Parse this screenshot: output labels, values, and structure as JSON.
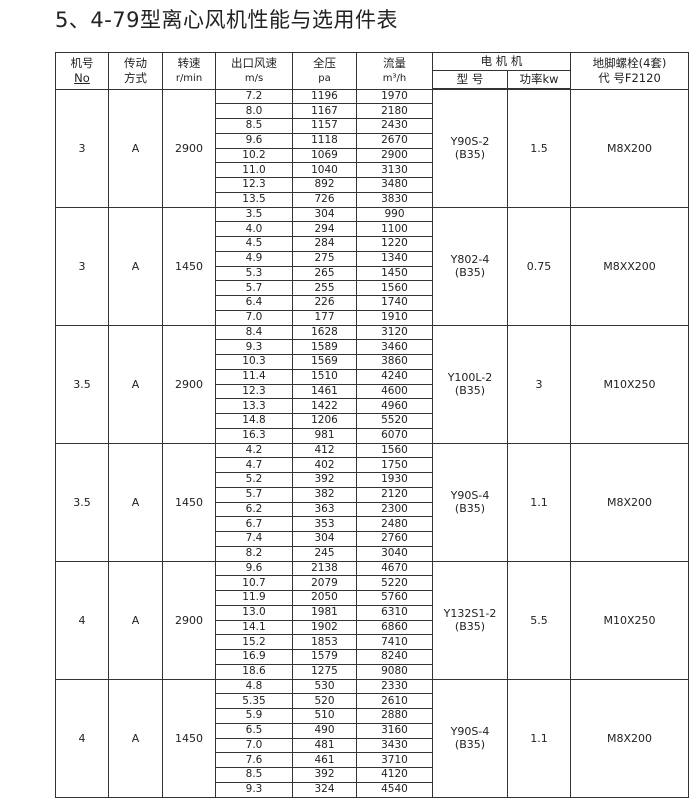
{
  "title": "5、4-79型离心风机性能与选用件表",
  "header": {
    "no": [
      "机号",
      "No"
    ],
    "drive": [
      "传动",
      "方式"
    ],
    "speed": [
      "转速",
      "r/min"
    ],
    "velocity": [
      "出口风速",
      "m/s"
    ],
    "pressure": [
      "全压",
      "pa"
    ],
    "flow": [
      "流量",
      "m³/h"
    ],
    "motor": "电 机 机",
    "motor_model": "型 号",
    "motor_power": "功率kw",
    "bolt": [
      "地脚螺栓(4套)",
      "代 号F2120"
    ]
  },
  "groups": [
    {
      "no": "3",
      "drive": "A",
      "speed": "2900",
      "model": "Y90S-2",
      "frame": "(B35)",
      "power": "1.5",
      "bolt": "M8X200",
      "rows": [
        [
          "7.2",
          "1196",
          "1970"
        ],
        [
          "8.0",
          "1167",
          "2180"
        ],
        [
          "8.5",
          "1157",
          "2430"
        ],
        [
          "9.6",
          "1118",
          "2670"
        ],
        [
          "10.2",
          "1069",
          "2900"
        ],
        [
          "11.0",
          "1040",
          "3130"
        ],
        [
          "12.3",
          "892",
          "3480"
        ],
        [
          "13.5",
          "726",
          "3830"
        ]
      ]
    },
    {
      "no": "3",
      "drive": "A",
      "speed": "1450",
      "model": "Y802-4",
      "frame": "(B35)",
      "power": "0.75",
      "bolt": "M8XX200",
      "rows": [
        [
          "3.5",
          "304",
          "990"
        ],
        [
          "4.0",
          "294",
          "1100"
        ],
        [
          "4.5",
          "284",
          "1220"
        ],
        [
          "4.9",
          "275",
          "1340"
        ],
        [
          "5.3",
          "265",
          "1450"
        ],
        [
          "5.7",
          "255",
          "1560"
        ],
        [
          "6.4",
          "226",
          "1740"
        ],
        [
          "7.0",
          "177",
          "1910"
        ]
      ]
    },
    {
      "no": "3.5",
      "drive": "A",
      "speed": "2900",
      "model": "Y100L-2",
      "frame": "(B35)",
      "power": "3",
      "bolt": "M10X250",
      "rows": [
        [
          "8.4",
          "1628",
          "3120"
        ],
        [
          "9.3",
          "1589",
          "3460"
        ],
        [
          "10.3",
          "1569",
          "3860"
        ],
        [
          "11.4",
          "1510",
          "4240"
        ],
        [
          "12.3",
          "1461",
          "4600"
        ],
        [
          "13.3",
          "1422",
          "4960"
        ],
        [
          "14.8",
          "1206",
          "5520"
        ],
        [
          "16.3",
          "981",
          "6070"
        ]
      ]
    },
    {
      "no": "3.5",
      "drive": "A",
      "speed": "1450",
      "model": "Y90S-4",
      "frame": "(B35)",
      "power": "1.1",
      "bolt": "M8X200",
      "rows": [
        [
          "4.2",
          "412",
          "1560"
        ],
        [
          "4.7",
          "402",
          "1750"
        ],
        [
          "5.2",
          "392",
          "1930"
        ],
        [
          "5.7",
          "382",
          "2120"
        ],
        [
          "6.2",
          "363",
          "2300"
        ],
        [
          "6.7",
          "353",
          "2480"
        ],
        [
          "7.4",
          "304",
          "2760"
        ],
        [
          "8.2",
          "245",
          "3040"
        ]
      ]
    },
    {
      "no": "4",
      "drive": "A",
      "speed": "2900",
      "model": "Y132S1-2",
      "frame": "(B35)",
      "power": "5.5",
      "bolt": "M10X250",
      "rows": [
        [
          "9.6",
          "2138",
          "4670"
        ],
        [
          "10.7",
          "2079",
          "5220"
        ],
        [
          "11.9",
          "2050",
          "5760"
        ],
        [
          "13.0",
          "1981",
          "6310"
        ],
        [
          "14.1",
          "1902",
          "6860"
        ],
        [
          "15.2",
          "1853",
          "7410"
        ],
        [
          "16.9",
          "1579",
          "8240"
        ],
        [
          "18.6",
          "1275",
          "9080"
        ]
      ]
    },
    {
      "no": "4",
      "drive": "A",
      "speed": "1450",
      "model": "Y90S-4",
      "frame": "(B35)",
      "power": "1.1",
      "bolt": "M8X200",
      "rows": [
        [
          "4.8",
          "530",
          "2330"
        ],
        [
          "5.35",
          "520",
          "2610"
        ],
        [
          "5.9",
          "510",
          "2880"
        ],
        [
          "6.5",
          "490",
          "3160"
        ],
        [
          "7.0",
          "481",
          "3430"
        ],
        [
          "7.6",
          "461",
          "3710"
        ],
        [
          "8.5",
          "392",
          "4120"
        ],
        [
          "9.3",
          "324",
          "4540"
        ]
      ]
    }
  ]
}
